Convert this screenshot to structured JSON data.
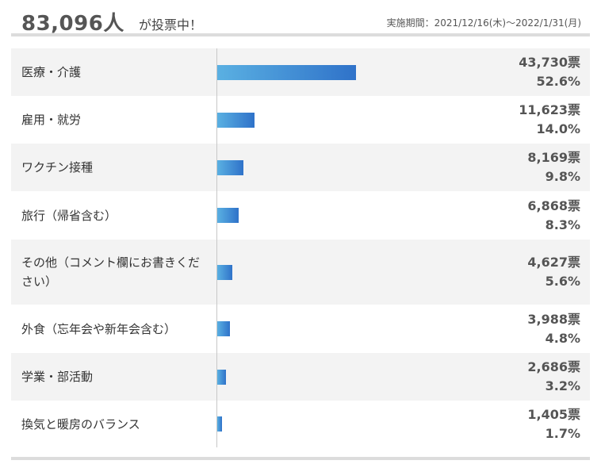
{
  "header": {
    "total": "83,096人",
    "total_suffix": "が投票中！",
    "period": "実施期間：2021/12/16(木)～2022/1/31(月)"
  },
  "chart_data": {
    "type": "bar",
    "orientation": "horizontal",
    "unit_votes": "票",
    "categories": [
      "医療・介護",
      "雇用・就労",
      "ワクチン接種",
      "旅行（帰省含む）",
      "その他（コメント欄にお書きください）",
      "外食（忘年会や新年会含む）",
      "学業・部活動",
      "換気と暖房のバランス"
    ],
    "votes": [
      43730,
      11623,
      8169,
      6868,
      4627,
      3988,
      2686,
      1405
    ],
    "percent": [
      52.6,
      14.0,
      9.8,
      8.3,
      5.6,
      4.8,
      3.2,
      1.7
    ],
    "votes_labels": [
      "43,730票",
      "11,623票",
      "8,169票",
      "6,868票",
      "4,627票",
      "3,988票",
      "2,686票",
      "1,405票"
    ],
    "percent_labels": [
      "52.6%",
      "14.0%",
      "9.8%",
      "8.3%",
      "5.6%",
      "4.8%",
      "3.2%",
      "1.7%"
    ],
    "colors": {
      "bar_start": "#5ab0e2",
      "bar_end": "#2f72c9",
      "row_shade": "#f3f3f3"
    }
  }
}
